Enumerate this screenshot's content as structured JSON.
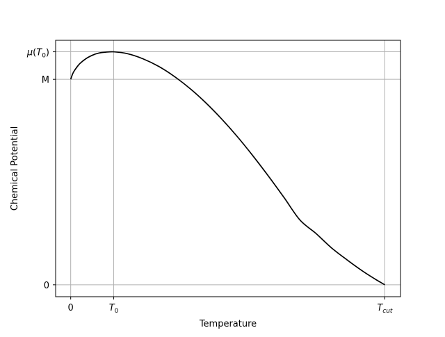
{
  "chart_data": {
    "type": "line",
    "title": "",
    "xlabel": "Temperature",
    "ylabel": "Chemical Potential",
    "grid": true,
    "legend": "none",
    "line_color": "#000000",
    "grid_color": "#b0b0b0",
    "x_ticks": [
      {
        "value": 0,
        "label": "0",
        "sub": ""
      },
      {
        "value": 0.137,
        "label": "T",
        "sub": "0"
      },
      {
        "value": 1,
        "label": "T",
        "sub": "cut"
      }
    ],
    "y_ticks": [
      {
        "value": 0,
        "label": "0",
        "pre": "",
        "sub": "",
        "post": ""
      },
      {
        "value": 1,
        "label": "M",
        "pre": "",
        "sub": "",
        "post": ""
      },
      {
        "value": 1.134,
        "label": "",
        "pre": "μ(T",
        "sub": "0",
        "post": ")"
      }
    ],
    "xlim": [
      -0.048,
      1.05
    ],
    "ylim": [
      -0.058,
      1.19
    ],
    "series": [
      {
        "name": "",
        "x": [
          0,
          0.005,
          0.01,
          0.02,
          0.03,
          0.05,
          0.07,
          0.09,
          0.11,
          0.137,
          0.18,
          0.23,
          0.28,
          0.33,
          0.38,
          0.43,
          0.48,
          0.53,
          0.58,
          0.63,
          0.68,
          0.73,
          0.78,
          0.83,
          0.88,
          0.93,
          0.97,
          1.0
        ],
        "y": [
          1.0,
          1.022,
          1.038,
          1.06,
          1.078,
          1.102,
          1.118,
          1.128,
          1.132,
          1.134,
          1.125,
          1.1,
          1.063,
          1.014,
          0.955,
          0.886,
          0.808,
          0.722,
          0.628,
          0.528,
          0.423,
          0.315,
          0.251,
          0.18,
          0.121,
          0.066,
          0.027,
          0.0
        ]
      }
    ]
  }
}
